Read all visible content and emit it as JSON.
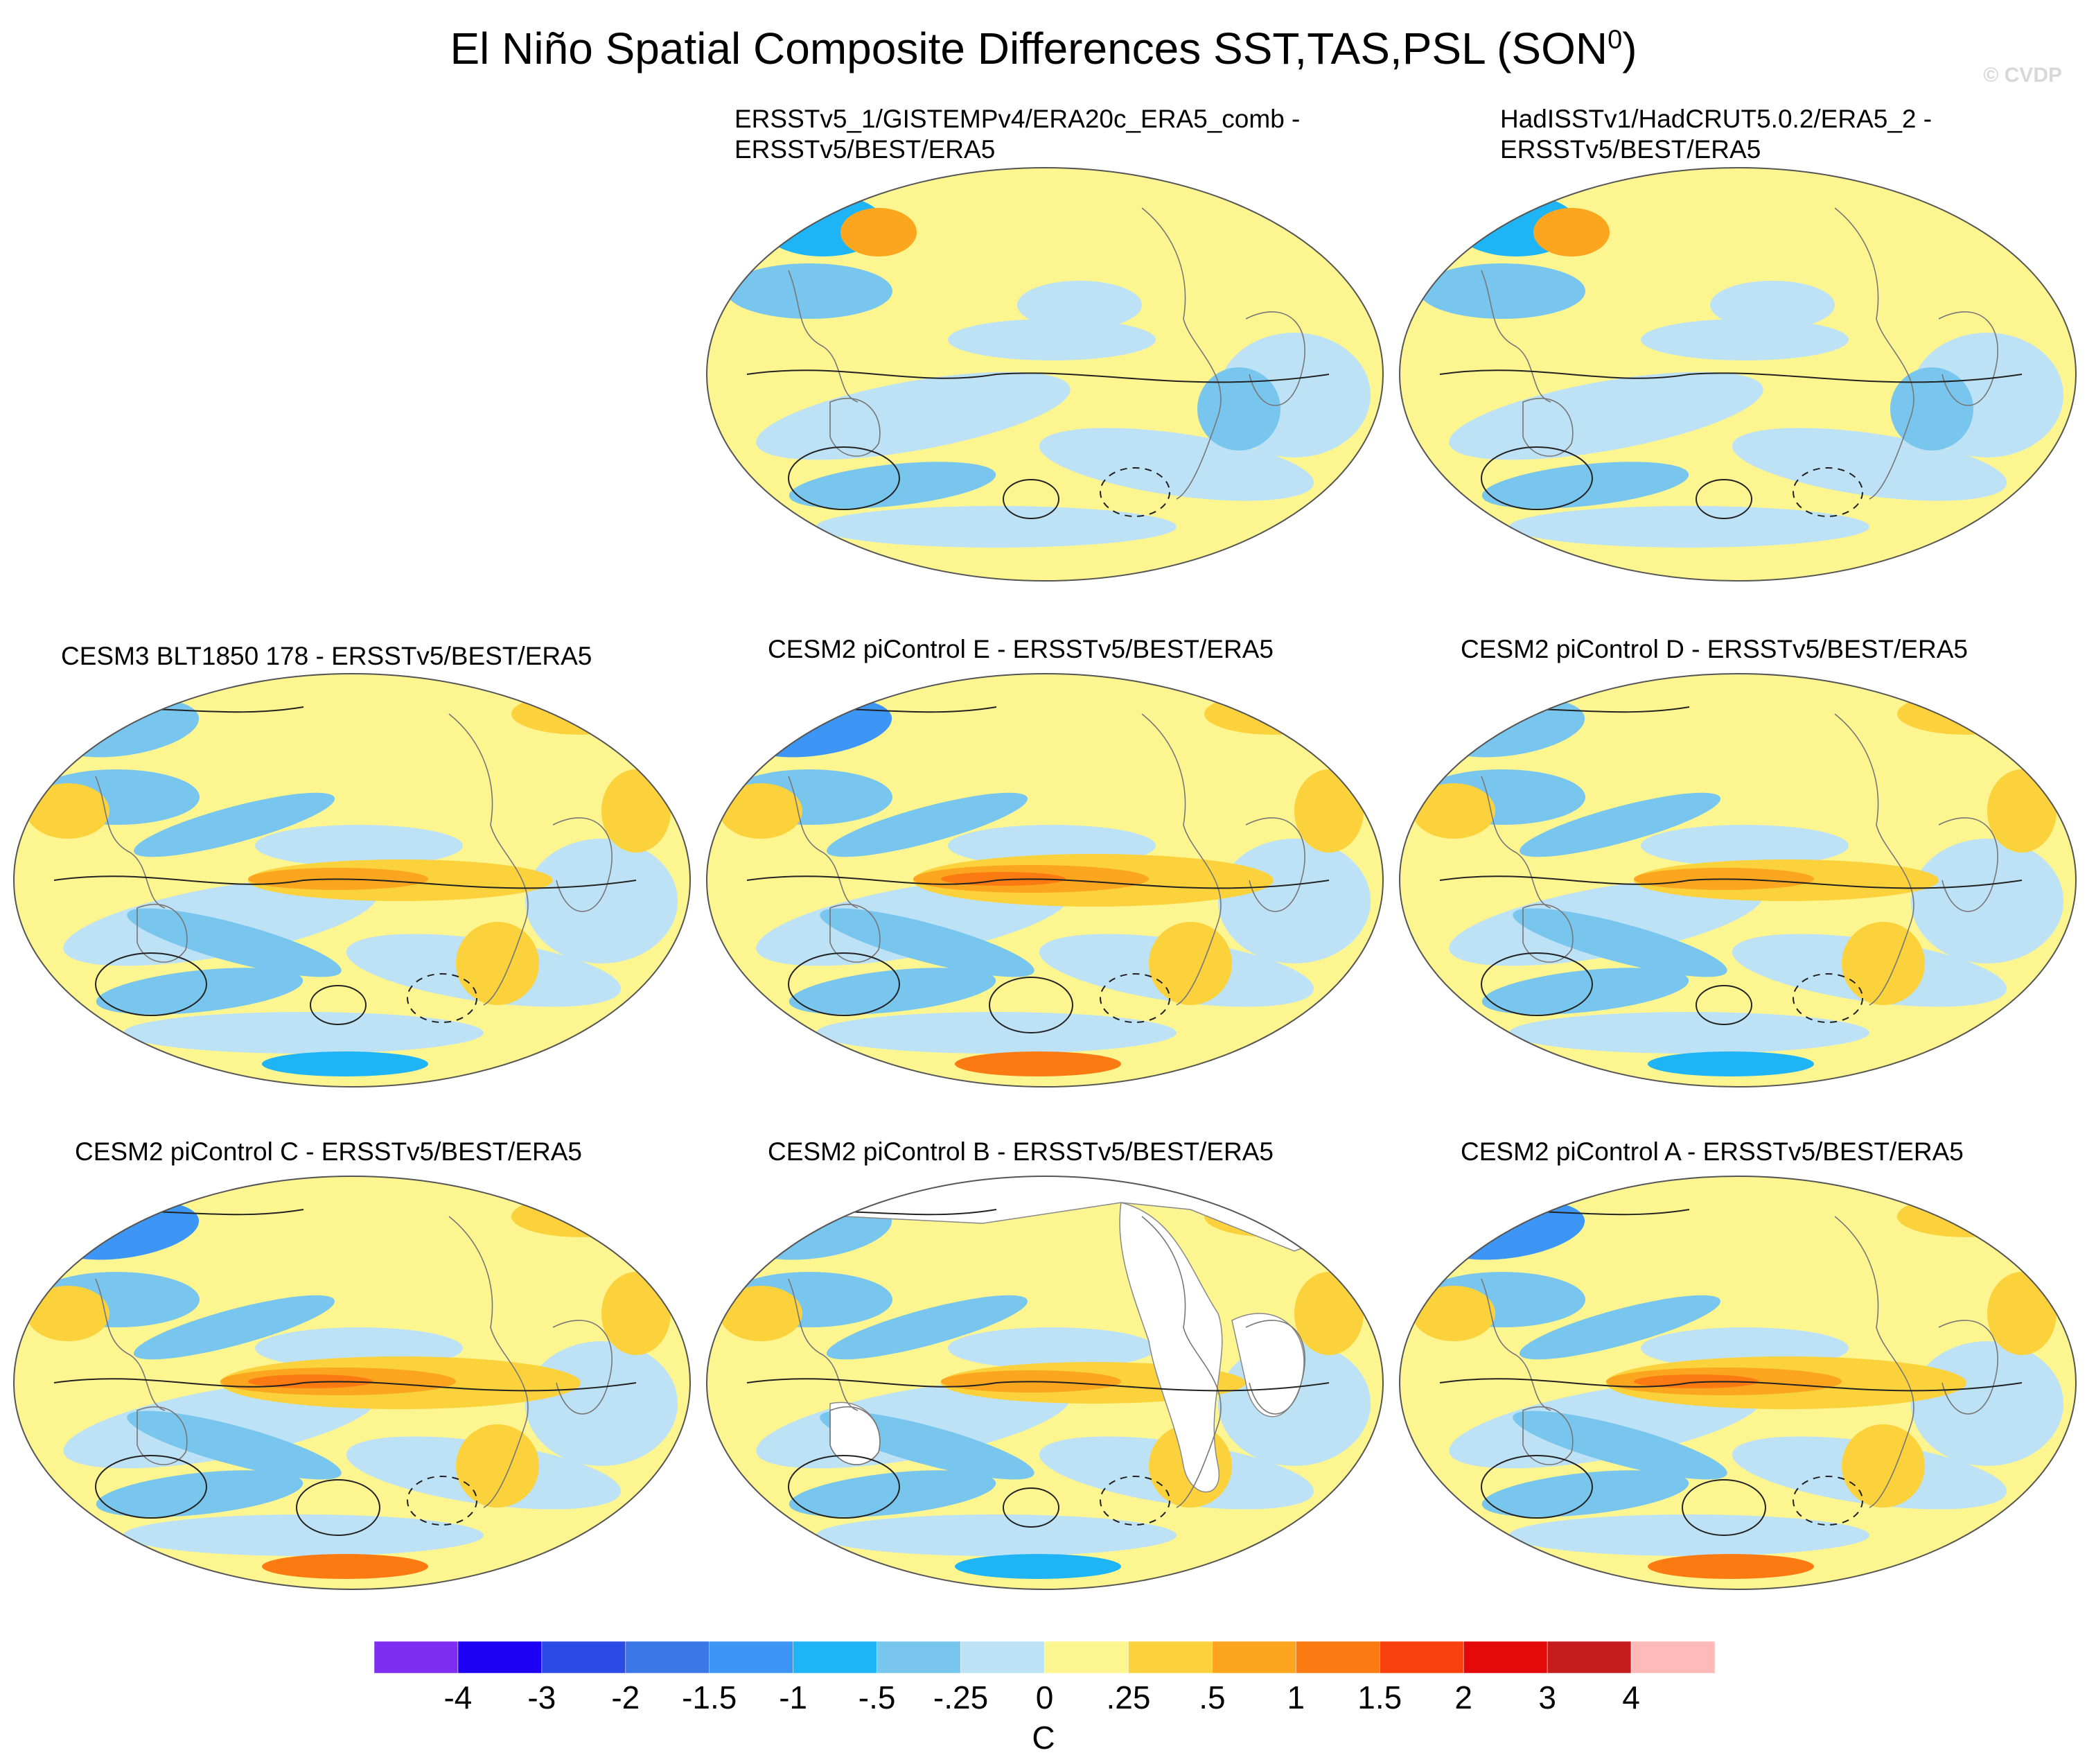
{
  "title": "El Niño Spatial Composite Differences SST,TAS,PSL (SON",
  "title_superscript": "0",
  "title_close": ")",
  "credit": "© CVDP",
  "chart_data": {
    "type": "heatmap",
    "projection": "Robinson (Pacific-centered)",
    "variables": [
      "SST",
      "TAS",
      "PSL"
    ],
    "season": "SON0",
    "colorbar": {
      "units": "C",
      "levels": [
        "-4",
        "-3",
        "-2",
        "-1.5",
        "-1",
        "-.5",
        "-.25",
        "0",
        ".25",
        ".5",
        "1",
        "1.5",
        "2",
        "3",
        "4"
      ],
      "colors": [
        "#7f2df0",
        "#1e00f5",
        "#2b4be6",
        "#3a78e8",
        "#3d95f5",
        "#1eb4f5",
        "#78c6ee",
        "#bde2f6",
        "#fdf590",
        "#fcd23c",
        "#fba61e",
        "#fb7a12",
        "#f8410f",
        "#e50a0a",
        "#c51d1d",
        "#fdbab8"
      ]
    },
    "panels": [
      {
        "id": "obs1",
        "title": "ERSSTv5_1/GISTEMPv4/ERA20c_ERA5_comb -\nERSSTv5/BEST/ERA5",
        "pattern": "weak"
      },
      {
        "id": "obs2",
        "title": "HadISSTv1/HadCRUT5.0.2/ERA5_2 -\nERSSTv5/BEST/ERA5",
        "pattern": "weak"
      },
      {
        "id": "cesm3",
        "title": "CESM3 BLT1850 178 - ERSSTv5/BEST/ERA5",
        "pattern": "enso-moderate"
      },
      {
        "id": "picE",
        "title": "CESM2 piControl E - ERSSTv5/BEST/ERA5",
        "pattern": "enso-strong"
      },
      {
        "id": "picD",
        "title": "CESM2 piControl D - ERSSTv5/BEST/ERA5",
        "pattern": "enso-moderate"
      },
      {
        "id": "picC",
        "title": "CESM2 piControl C - ERSSTv5/BEST/ERA5",
        "pattern": "enso-strong"
      },
      {
        "id": "picB",
        "title": "CESM2 piControl B - ERSSTv5/BEST/ERA5",
        "pattern": "sst-only"
      },
      {
        "id": "picA",
        "title": "CESM2 piControl A - ERSSTv5/BEST/ERA5",
        "pattern": "enso-strong"
      }
    ]
  }
}
